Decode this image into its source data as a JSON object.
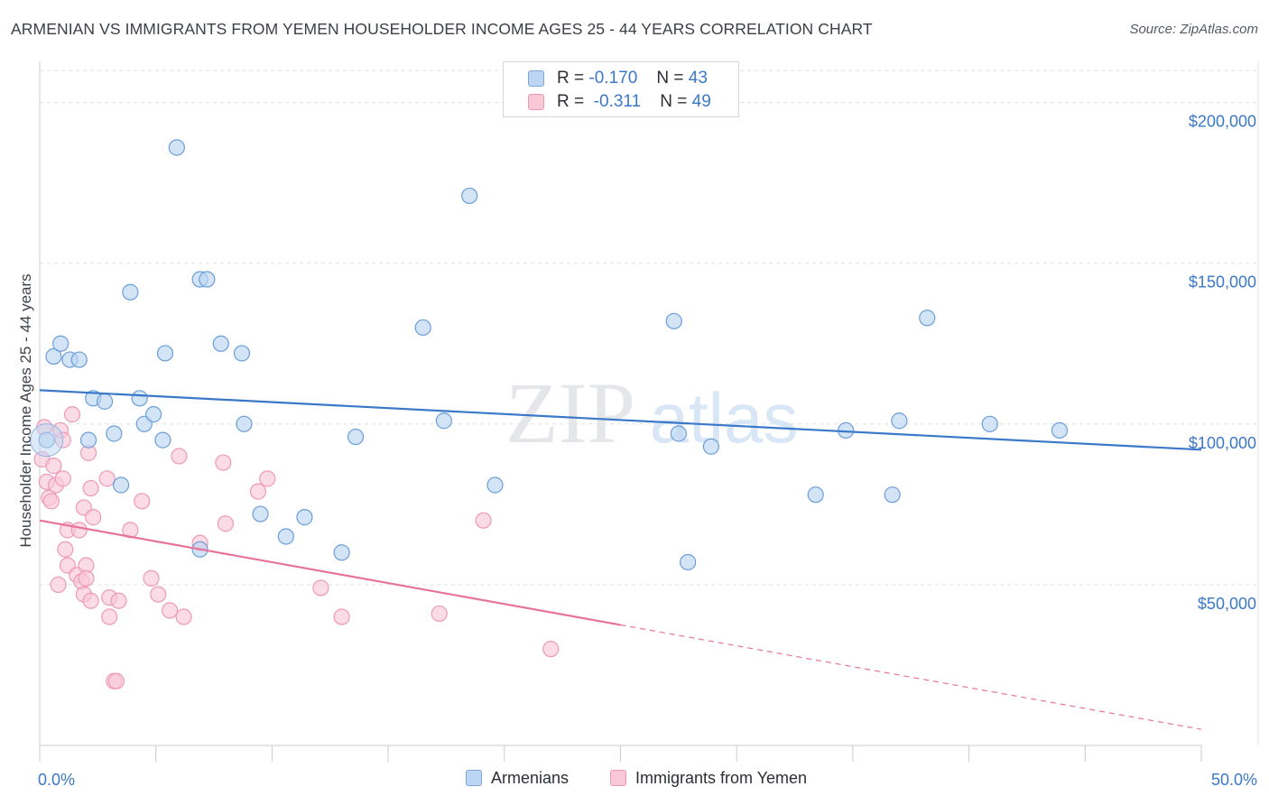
{
  "header": {
    "title": "ARMENIAN VS IMMIGRANTS FROM YEMEN HOUSEHOLDER INCOME AGES 25 - 44 YEARS CORRELATION CHART",
    "source": "Source: ZipAtlas.com"
  },
  "watermark": {
    "zip": "ZIP",
    "atlas": "atlas"
  },
  "stats_legend": {
    "r_label": "R =",
    "n_label": "N =",
    "rows": [
      {
        "r": "-0.170",
        "n": "43",
        "color": "#a9c9f0"
      },
      {
        "r": "-0.311",
        "n": "49",
        "color": "#f5b8cb"
      }
    ]
  },
  "bottom_legend": {
    "armenians": "Armenians",
    "yemen": "Immigrants from Yemen"
  },
  "colors": {
    "blue": "#3a78c8",
    "pink": "#e8739a",
    "blue_fill": "#bcd5f2",
    "pink_fill": "#f9c8d7"
  },
  "chart_data": {
    "type": "scatter",
    "title": "ARMENIAN VS IMMIGRANTS FROM YEMEN HOUSEHOLDER INCOME AGES 25 - 44 YEARS CORRELATION CHART",
    "ylabel": "Householder Income Ages 25 - 44 years",
    "xlabel": "",
    "xlim": [
      0,
      50
    ],
    "ylim": [
      0,
      210000
    ],
    "x_tick_labels": [
      "0.0%",
      "50.0%"
    ],
    "y_ticks": [
      50000,
      100000,
      150000,
      200000
    ],
    "y_tick_labels": [
      "$50,000",
      "$100,000",
      "$150,000",
      "$200,000"
    ],
    "grid": true,
    "legend_position": "top-center",
    "series": [
      {
        "name": "Armenians",
        "r": -0.17,
        "n": 43,
        "trend": {
          "x": [
            0,
            50
          ],
          "y": [
            110500,
            92000
          ],
          "dashed_from": null
        },
        "points": [
          [
            0.3,
            95000
          ],
          [
            0.6,
            121000
          ],
          [
            0.9,
            125000
          ],
          [
            1.3,
            120000
          ],
          [
            1.7,
            120000
          ],
          [
            2.3,
            108000
          ],
          [
            2.8,
            107000
          ],
          [
            2.1,
            95000
          ],
          [
            3.2,
            97000
          ],
          [
            3.5,
            81000
          ],
          [
            3.9,
            141000
          ],
          [
            4.3,
            108000
          ],
          [
            4.5,
            100000
          ],
          [
            4.9,
            103000
          ],
          [
            5.3,
            95000
          ],
          [
            5.4,
            122000
          ],
          [
            5.9,
            186000
          ],
          [
            6.9,
            61000
          ],
          [
            6.9,
            145000
          ],
          [
            7.2,
            145000
          ],
          [
            7.8,
            125000
          ],
          [
            8.7,
            122000
          ],
          [
            8.8,
            100000
          ],
          [
            9.5,
            72000
          ],
          [
            10.6,
            65000
          ],
          [
            11.4,
            71000
          ],
          [
            13.0,
            60000
          ],
          [
            13.6,
            96000
          ],
          [
            16.5,
            130000
          ],
          [
            17.4,
            101000
          ],
          [
            18.5,
            171000
          ],
          [
            19.6,
            81000
          ],
          [
            27.3,
            132000
          ],
          [
            27.5,
            97000
          ],
          [
            27.9,
            57000
          ],
          [
            28.9,
            93000
          ],
          [
            33.4,
            78000
          ],
          [
            34.7,
            98000
          ],
          [
            36.7,
            78000
          ],
          [
            37.0,
            101000
          ],
          [
            38.2,
            133000
          ],
          [
            40.9,
            100000
          ],
          [
            43.9,
            98000
          ]
        ]
      },
      {
        "name": "Immigrants from Yemen",
        "r": -0.311,
        "n": 49,
        "trend": {
          "x": [
            0,
            50
          ],
          "y": [
            70000,
            5000
          ],
          "dashed_from": 25
        },
        "points": [
          [
            0.1,
            89000
          ],
          [
            0.2,
            99000
          ],
          [
            0.3,
            82000
          ],
          [
            0.4,
            77000
          ],
          [
            0.5,
            76000
          ],
          [
            0.6,
            87000
          ],
          [
            0.7,
            81000
          ],
          [
            0.8,
            50000
          ],
          [
            0.9,
            98000
          ],
          [
            1.0,
            95000
          ],
          [
            1.0,
            83000
          ],
          [
            1.1,
            61000
          ],
          [
            1.2,
            56000
          ],
          [
            1.2,
            67000
          ],
          [
            1.4,
            103000
          ],
          [
            1.6,
            53000
          ],
          [
            1.7,
            67000
          ],
          [
            1.8,
            51000
          ],
          [
            1.9,
            74000
          ],
          [
            1.9,
            47000
          ],
          [
            2.0,
            56000
          ],
          [
            2.0,
            52000
          ],
          [
            2.1,
            91000
          ],
          [
            2.2,
            45000
          ],
          [
            2.2,
            80000
          ],
          [
            2.3,
            71000
          ],
          [
            2.9,
            83000
          ],
          [
            3.0,
            40000
          ],
          [
            3.0,
            46000
          ],
          [
            3.2,
            20000
          ],
          [
            3.3,
            20000
          ],
          [
            3.4,
            45000
          ],
          [
            3.9,
            67000
          ],
          [
            4.4,
            76000
          ],
          [
            4.8,
            52000
          ],
          [
            5.1,
            47000
          ],
          [
            5.6,
            42000
          ],
          [
            6.0,
            90000
          ],
          [
            6.2,
            40000
          ],
          [
            6.9,
            63000
          ],
          [
            7.9,
            88000
          ],
          [
            8.0,
            69000
          ],
          [
            9.4,
            79000
          ],
          [
            9.8,
            83000
          ],
          [
            12.1,
            49000
          ],
          [
            13.0,
            40000
          ],
          [
            17.2,
            41000
          ],
          [
            19.1,
            70000
          ],
          [
            22.0,
            30000
          ]
        ]
      }
    ]
  }
}
